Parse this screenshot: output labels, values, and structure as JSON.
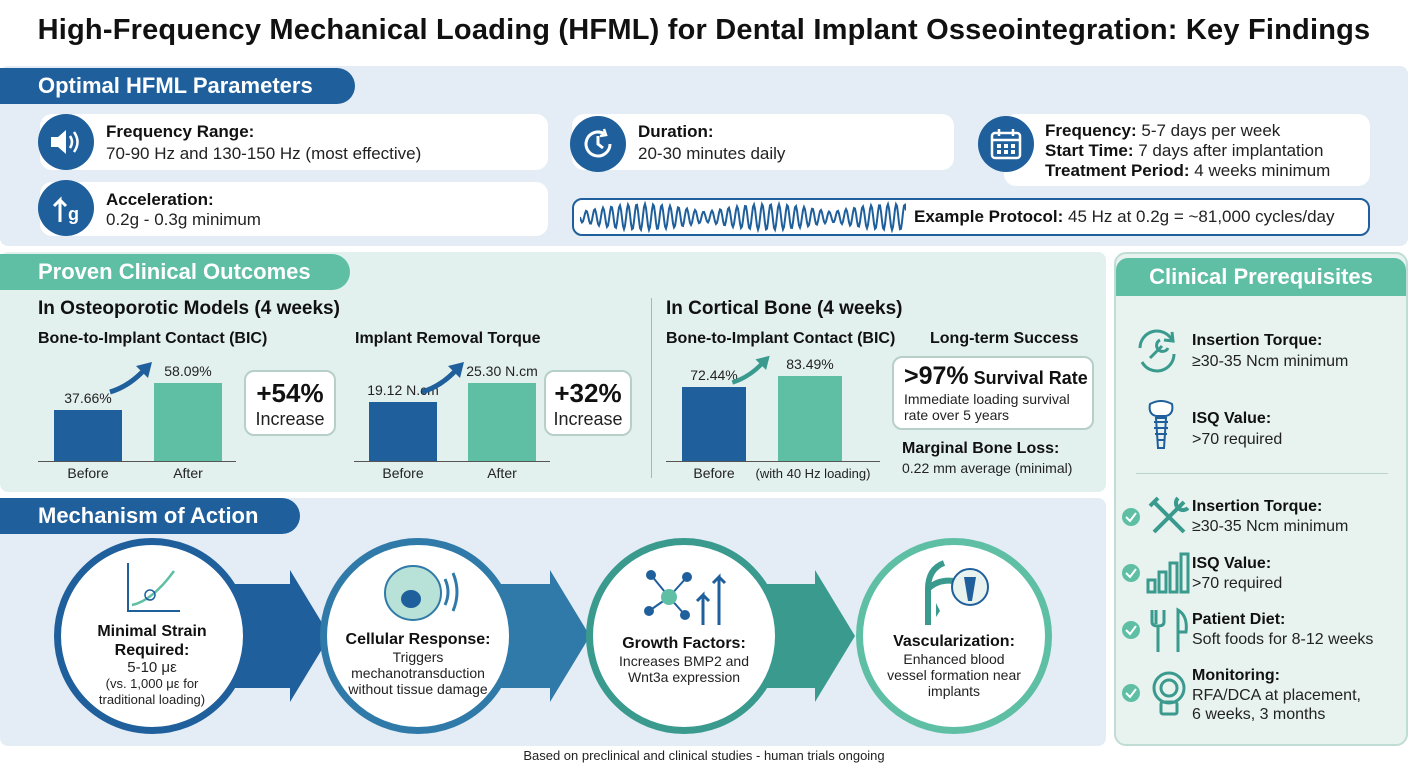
{
  "title": "High-Frequency Mechanical Loading (HFML) for Dental Implant Osseointegration: Key Findings",
  "params": {
    "heading": "Optimal HFML Parameters",
    "frequency_range": {
      "label": "Frequency Range:",
      "value": "70-90 Hz and 130-150 Hz (most effective)",
      "icon": "speaker-icon"
    },
    "acceleration": {
      "label": "Acceleration:",
      "value": "0.2g - 0.3g minimum",
      "icon": "acceleration-arrow-icon",
      "icon_text": "g"
    },
    "duration": {
      "label": "Duration:",
      "value": "20-30 minutes daily",
      "icon": "clock-icon"
    },
    "schedule": {
      "icon": "calendar-icon",
      "frequency_label": "Frequency:",
      "frequency_value": "5-7 days per week",
      "start_label": "Start Time:",
      "start_value": "7 days after implantation",
      "period_label": "Treatment Period:",
      "period_value": "4 weeks minimum"
    },
    "example": {
      "label": "Example Protocol:",
      "value": "45 Hz at 0.2g = ~81,000 cycles/day"
    }
  },
  "outcomes": {
    "heading": "Proven Clinical Outcomes",
    "osteo_heading": "In Osteoporotic Models (4 weeks)",
    "cortical_heading": "In Cortical Bone (4 weeks)",
    "bic_osteo": {
      "title": "Bone-to-Implant Contact (BIC)",
      "before_label": "37.66%",
      "after_label": "58.09%",
      "x_before": "Before",
      "x_after": "After",
      "callout_big": "+54%",
      "callout_small": "Increase"
    },
    "torque": {
      "title": "Implant Removal Torque",
      "before_label": "19.12 N.cm",
      "after_label": "25.30 N.cm",
      "x_before": "Before",
      "x_after": "After",
      "callout_big": "+32%",
      "callout_small": "Increase"
    },
    "bic_cortical": {
      "title": "Bone-to-Implant Contact (BIC)",
      "before_label": "72.44%",
      "after_label": "83.49%",
      "x_before": "Before",
      "x_after": "(with 40 Hz loading)"
    },
    "longterm": {
      "title": "Long-term Success",
      "big": ">97%",
      "big_suffix": "Survival Rate",
      "desc": "Immediate loading survival rate over 5 years",
      "mbl_label": "Marginal Bone Loss:",
      "mbl_value": "0.22 mm average (minimal)"
    }
  },
  "chart_data": [
    {
      "type": "bar",
      "title": "Bone-to-Implant Contact (BIC)",
      "categories": [
        "Before",
        "After"
      ],
      "values": [
        37.66,
        58.09
      ]
    },
    {
      "type": "bar",
      "title": "Implant Removal Torque",
      "categories": [
        "Before",
        "After"
      ],
      "values": [
        19.12,
        25.3
      ]
    },
    {
      "type": "bar",
      "title": "Bone-to-Implant Contact (BIC)",
      "categories": [
        "Before",
        "(with 40 Hz loading)"
      ],
      "values": [
        72.44,
        83.49
      ]
    }
  ],
  "mechanism": {
    "heading": "Mechanism of Action",
    "steps": [
      {
        "title": "Minimal Strain Required:",
        "desc": "5-10 με",
        "desc2": "(vs. 1,000 με for traditional loading)",
        "icon": "strain-graph-icon"
      },
      {
        "title": "Cellular Response:",
        "desc": "Triggers mechanotransduction without tissue damage",
        "icon": "cell-icon"
      },
      {
        "title": "Growth Factors:",
        "desc": "Increases BMP2 and Wnt3a expression",
        "icon": "molecule-growth-icon"
      },
      {
        "title": "Vascularization:",
        "desc": "Enhanced blood vessel formation near implants",
        "icon": "blood-vessel-implant-icon"
      }
    ]
  },
  "prereq": {
    "heading": "Clinical Prerequisites",
    "items": [
      {
        "label": "Insertion Torque:",
        "value": "≥30-35 Ncm minimum",
        "icon": "wrench-cycle-icon"
      },
      {
        "label": "ISQ Value:",
        "value": ">70 required",
        "icon": "implant-icon"
      },
      {
        "label": "Insertion Torque:",
        "value": "≥30-35 Ncm minimum",
        "icon": "tools-icon"
      },
      {
        "label": "ISQ Value:",
        "value": ">70 required",
        "icon": "signal-bars-icon"
      },
      {
        "label": "Patient Diet:",
        "value": "Soft foods for 8-12 weeks",
        "icon": "fork-knife-icon"
      },
      {
        "label": "Monitoring:",
        "value": "RFA/DCA at placement, 6 weeks, 3 months",
        "icon": "monitor-device-icon"
      }
    ]
  },
  "footer": "Based on preclinical and clinical studies - human trials ongoing",
  "colors": {
    "blue": "#1f5f9c",
    "teal": "#5fbfa5"
  }
}
